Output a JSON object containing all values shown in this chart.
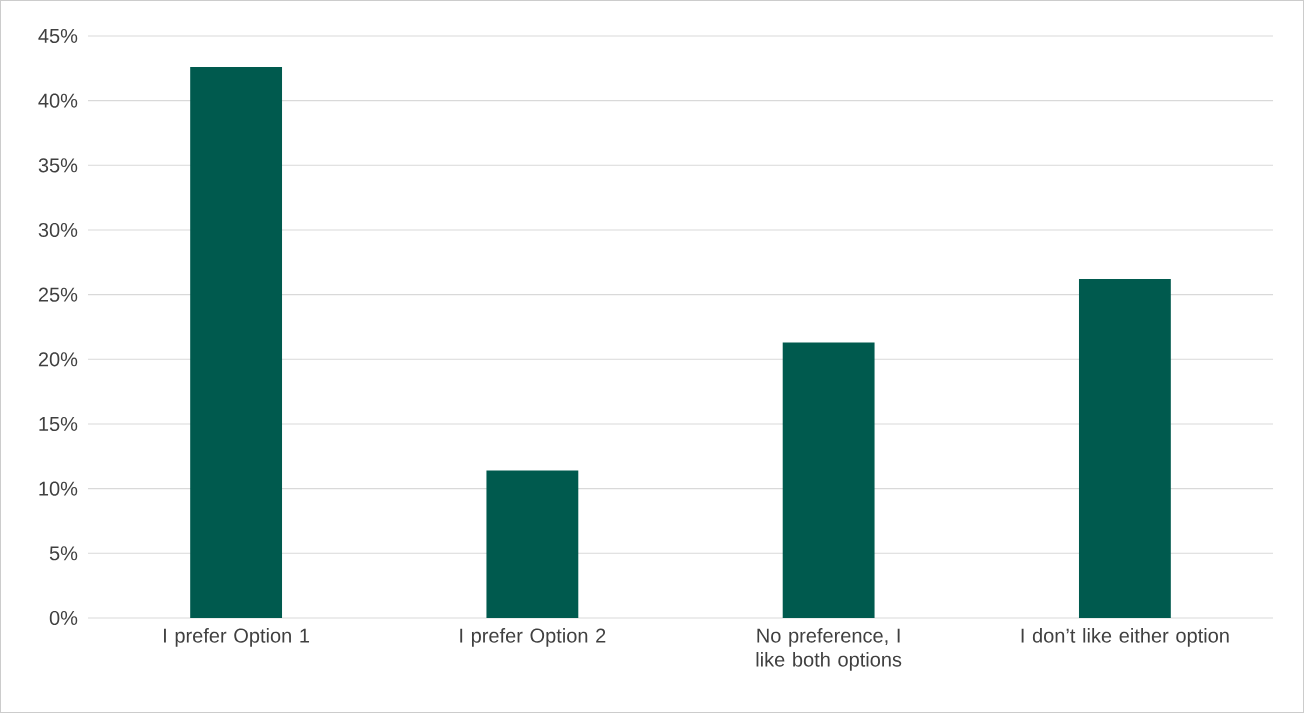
{
  "chart_data": {
    "type": "bar",
    "categories": [
      "I prefer Option 1",
      "I prefer Option 2",
      "No preference, I like both options",
      "I don’t like either option"
    ],
    "values": [
      42.6,
      11.4,
      21.3,
      26.2
    ],
    "color": "#005a4e",
    "ylim": [
      0,
      45
    ],
    "yticks": [
      {
        "value": 0,
        "label": "0%"
      },
      {
        "value": 5,
        "label": "5%"
      },
      {
        "value": 10,
        "label": "10%"
      },
      {
        "value": 15,
        "label": "15%"
      },
      {
        "value": 20,
        "label": "20%"
      },
      {
        "value": 25,
        "label": "25%"
      },
      {
        "value": 30,
        "label": "30%"
      },
      {
        "value": 35,
        "label": "35%"
      },
      {
        "value": 40,
        "label": "40%"
      },
      {
        "value": 45,
        "label": "45%"
      }
    ],
    "grid": "y"
  }
}
